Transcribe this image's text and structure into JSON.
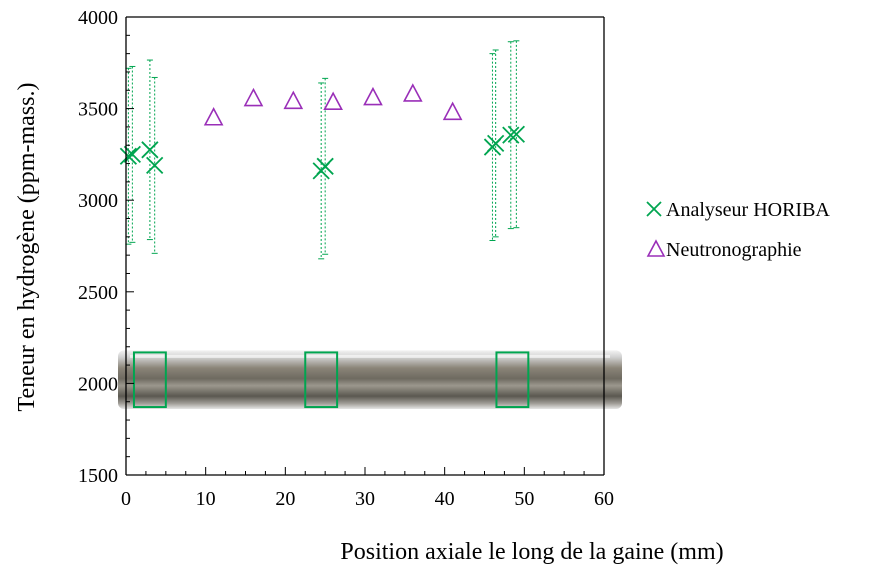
{
  "chart_data": {
    "type": "scatter",
    "xlabel": "Position axiale le long de la gaine (mm)",
    "ylabel": "Teneur en hydrogène (ppm-mass.)",
    "xlim": [
      0,
      60
    ],
    "ylim": [
      1500,
      4000
    ],
    "x_ticks": [
      "0",
      "10",
      "20",
      "30",
      "40",
      "50",
      "60"
    ],
    "y_ticks": [
      "1500",
      "2000",
      "2500",
      "3000",
      "3500",
      "4000"
    ],
    "x_minor_step": 2.5,
    "y_minor_step": 100,
    "grid": false,
    "legend_position": "right",
    "series": [
      {
        "name": "Analyseur HORIBA",
        "marker": "x",
        "color": "#00a550",
        "points": [
          {
            "x": 0.3,
            "y": 3240,
            "err": 480
          },
          {
            "x": 0.8,
            "y": 3250,
            "err": 480
          },
          {
            "x": 3.0,
            "y": 3275,
            "err": 490
          },
          {
            "x": 3.6,
            "y": 3190,
            "err": 480
          },
          {
            "x": 24.5,
            "y": 3160,
            "err": 480
          },
          {
            "x": 25.0,
            "y": 3185,
            "err": 480
          },
          {
            "x": 46.0,
            "y": 3290,
            "err": 510
          },
          {
            "x": 46.4,
            "y": 3310,
            "err": 510
          },
          {
            "x": 48.3,
            "y": 3355,
            "err": 510
          },
          {
            "x": 49.0,
            "y": 3360,
            "err": 510
          }
        ]
      },
      {
        "name": "Neutronographie",
        "marker": "triangle",
        "color": "#9a2fb8",
        "points": [
          {
            "x": 11,
            "y": 3450
          },
          {
            "x": 16,
            "y": 3555
          },
          {
            "x": 21,
            "y": 3540
          },
          {
            "x": 26,
            "y": 3535
          },
          {
            "x": 31,
            "y": 3560
          },
          {
            "x": 36,
            "y": 3580
          },
          {
            "x": 41,
            "y": 3480
          }
        ]
      }
    ],
    "inset_sample_boxes_x": [
      [
        1,
        5
      ],
      [
        22.5,
        26.5
      ],
      [
        46.5,
        50.5
      ]
    ],
    "inset_y_range": [
      1860,
      2180
    ]
  }
}
